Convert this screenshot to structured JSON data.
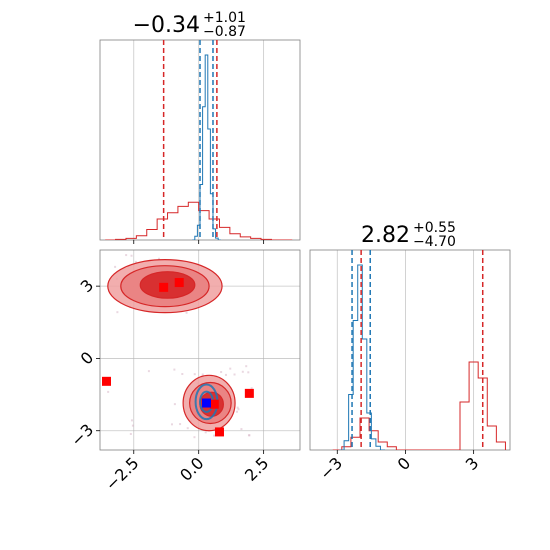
{
  "chart_data": {
    "type": "corner",
    "grid": true,
    "colors": {
      "red": "#d62728",
      "blue": "#1f77b4",
      "red_fill_dark": "#d62728",
      "red_fill_light": "#f0a0a0",
      "marker_blue": "#0000ff",
      "marker_red": "#ff0000"
    },
    "panels": {
      "top_left": {
        "title_main": "−0.34",
        "title_sup": "+1.01",
        "title_sub": "−0.87",
        "xlim": [
          -3.8,
          3.9
        ],
        "red_quantiles": [
          -1.35,
          0.7
        ],
        "blue_quantiles": [
          0.05,
          0.55
        ],
        "red_hist": {
          "x": [
            -3.4,
            -3.0,
            -2.6,
            -2.2,
            -1.8,
            -1.4,
            -1.0,
            -0.6,
            -0.2,
            0.2,
            0.6,
            1.0,
            1.4,
            1.8,
            2.2,
            2.6,
            3.0,
            3.4
          ],
          "y": [
            0.0,
            0.003,
            0.008,
            0.02,
            0.05,
            0.1,
            0.13,
            0.16,
            0.18,
            0.14,
            0.1,
            0.06,
            0.03,
            0.015,
            0.008,
            0.003,
            0.0,
            0.0
          ]
        },
        "blue_hist": {
          "x": [
            -0.2,
            -0.1,
            0.0,
            0.1,
            0.2,
            0.3,
            0.4,
            0.5,
            0.6,
            0.7,
            0.8
          ],
          "y": [
            0.0,
            0.02,
            0.08,
            0.3,
            0.72,
            1.0,
            0.6,
            0.25,
            0.06,
            0.01,
            0.0
          ]
        }
      },
      "bottom_left": {
        "xlim": [
          -3.8,
          3.9
        ],
        "ylim": [
          -3.8,
          4.5
        ],
        "xticks": [
          -2.5,
          0.0,
          2.5
        ],
        "xtick_labels": [
          "−2.5",
          "0.0",
          "2.5"
        ],
        "yticks": [
          -3,
          0,
          3
        ],
        "ytick_labels": [
          "−3",
          "0",
          "3"
        ],
        "red_contours": [
          {
            "cx": -1.3,
            "cy": 3.0,
            "rx": 2.2,
            "ry": 1.1
          },
          {
            "cx": -1.3,
            "cy": 3.0,
            "rx": 1.7,
            "ry": 0.85
          },
          {
            "cx": -1.2,
            "cy": 3.05,
            "rx": 1.05,
            "ry": 0.55
          },
          {
            "cx": 0.4,
            "cy": -1.85,
            "rx": 1.0,
            "ry": 1.15
          },
          {
            "cx": 0.45,
            "cy": -1.85,
            "rx": 0.8,
            "ry": 0.85
          },
          {
            "cx": 0.5,
            "cy": -1.9,
            "rx": 0.45,
            "ry": 0.5
          }
        ],
        "blue_contours": [
          {
            "cx": 0.3,
            "cy": -1.8,
            "rx": 0.42,
            "ry": 0.72
          },
          {
            "cx": 0.3,
            "cy": -1.8,
            "rx": 0.25,
            "ry": 0.42
          }
        ],
        "red_markers": [
          [
            -1.35,
            2.95
          ],
          [
            -0.75,
            3.15
          ],
          [
            -3.55,
            -0.95
          ],
          [
            1.95,
            -1.45
          ],
          [
            0.8,
            -3.05
          ],
          [
            0.6,
            -1.9
          ]
        ],
        "blue_markers": [
          [
            0.3,
            -1.85
          ]
        ]
      },
      "bottom_right": {
        "title_main": "2.82",
        "title_sup": "+0.55",
        "title_sub": "−4.70",
        "xlim": [
          -4.2,
          4.6
        ],
        "xticks": [
          -3,
          0,
          3
        ],
        "xtick_labels": [
          "−3",
          "0",
          "3"
        ],
        "red_quantiles": [
          -1.95,
          3.4
        ],
        "blue_quantiles": [
          -2.35,
          -1.55
        ],
        "red_hist": {
          "x": [
            -3.0,
            -2.6,
            -2.2,
            -1.8,
            -1.4,
            -1.0,
            -0.6,
            -0.2,
            0.2,
            0.6,
            1.0,
            1.4,
            1.8,
            2.2,
            2.6,
            3.0,
            3.4,
            3.8,
            4.2
          ],
          "y": [
            0.0,
            0.02,
            0.08,
            0.2,
            0.12,
            0.05,
            0.02,
            0.0,
            0.0,
            0.0,
            0.0,
            0.0,
            0.0,
            0.0,
            0.3,
            0.55,
            0.45,
            0.15,
            0.05
          ]
        },
        "blue_hist": {
          "x": [
            -2.8,
            -2.6,
            -2.4,
            -2.2,
            -2.0,
            -1.8,
            -1.6,
            -1.4,
            -1.2,
            -1.0
          ],
          "y": [
            0.0,
            0.05,
            0.3,
            0.7,
            1.0,
            0.6,
            0.2,
            0.06,
            0.02,
            0.0
          ]
        }
      }
    }
  }
}
